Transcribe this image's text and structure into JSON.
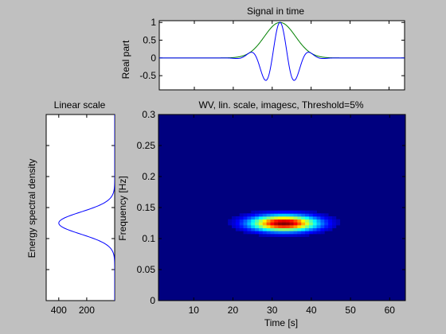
{
  "chart_data": [
    {
      "id": "time",
      "type": "line",
      "title": "Signal in time",
      "ylabel": "Real part",
      "xlim": [
        1,
        64
      ],
      "ylim": [
        -0.9,
        1.05
      ],
      "yticks": [
        -0.5,
        0,
        0.5,
        1
      ],
      "yticklabels": [
        "-0.5",
        "0",
        "0.5",
        "1"
      ],
      "colors": {
        "signal": "#0000ff",
        "envelope": "#008000",
        "background": "#ffffff"
      },
      "signal_model": {
        "center": 32,
        "sigma": 10,
        "frequency": 0.125
      }
    },
    {
      "id": "spectrum",
      "type": "line",
      "title": "Linear scale",
      "ylabel": "Energy spectral density",
      "xlim": [
        490,
        0
      ],
      "ylim": [
        0,
        0.3
      ],
      "xticks": [
        400,
        200
      ],
      "xticklabels": [
        "400",
        "200"
      ],
      "colors": {
        "line": "#0000ff",
        "background": "#ffffff"
      },
      "spectrum_model": {
        "peak": 400,
        "center": 0.125,
        "sigma": 0.0178
      }
    },
    {
      "id": "wv",
      "type": "heatmap",
      "title": "WV, lin. scale, imagesc, Threshold=5%",
      "xlabel": "Time [s]",
      "ylabel": "Frequency [Hz]",
      "xlim": [
        1,
        64
      ],
      "ylim": [
        0,
        0.3
      ],
      "xticks": [
        10,
        20,
        30,
        40,
        50,
        60
      ],
      "xticklabels": [
        "10",
        "20",
        "30",
        "40",
        "50",
        "60"
      ],
      "yticks": [
        0,
        0.05,
        0.1,
        0.15,
        0.2,
        0.25,
        0.3
      ],
      "yticklabels": [
        "0",
        "0.05",
        "0.1",
        "0.15",
        "0.2",
        "0.25",
        "0.3"
      ],
      "colormap": "jet",
      "threshold": 0.05,
      "blob": {
        "t_center": 33,
        "f_center": 0.125,
        "t_sigma": 8.2,
        "f_sigma": 0.0125
      }
    }
  ]
}
